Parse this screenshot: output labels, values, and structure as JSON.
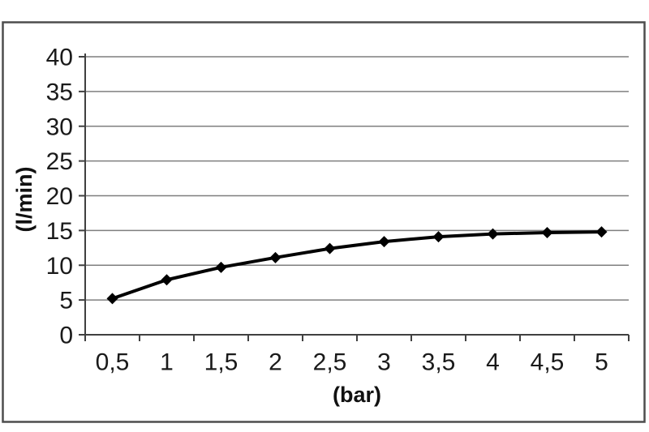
{
  "chart_data": {
    "type": "line",
    "title": "",
    "xlabel": "(bar)",
    "ylabel": "(l/min)",
    "categories": [
      "0,5",
      "1",
      "1,5",
      "2",
      "2,5",
      "3",
      "3,5",
      "4",
      "4,5",
      "5"
    ],
    "x": [
      0.5,
      1,
      1.5,
      2,
      2.5,
      3,
      3.5,
      4,
      4.5,
      5
    ],
    "series": [
      {
        "values": [
          5.2,
          7.9,
          9.7,
          11.1,
          12.4,
          13.4,
          14.1,
          14.5,
          14.7,
          14.8
        ]
      }
    ],
    "ylim": [
      0,
      40
    ],
    "yticks": [
      0,
      5,
      10,
      15,
      20,
      25,
      30,
      35,
      40
    ],
    "grid": "horizontal",
    "legend": "none",
    "marker": "diamond",
    "line_color": "#000000",
    "gridline_color": "#7f7f7f",
    "axis_color": "#404040",
    "frame_color": "#4d4d4d",
    "text_color": "#1a1a1a"
  }
}
